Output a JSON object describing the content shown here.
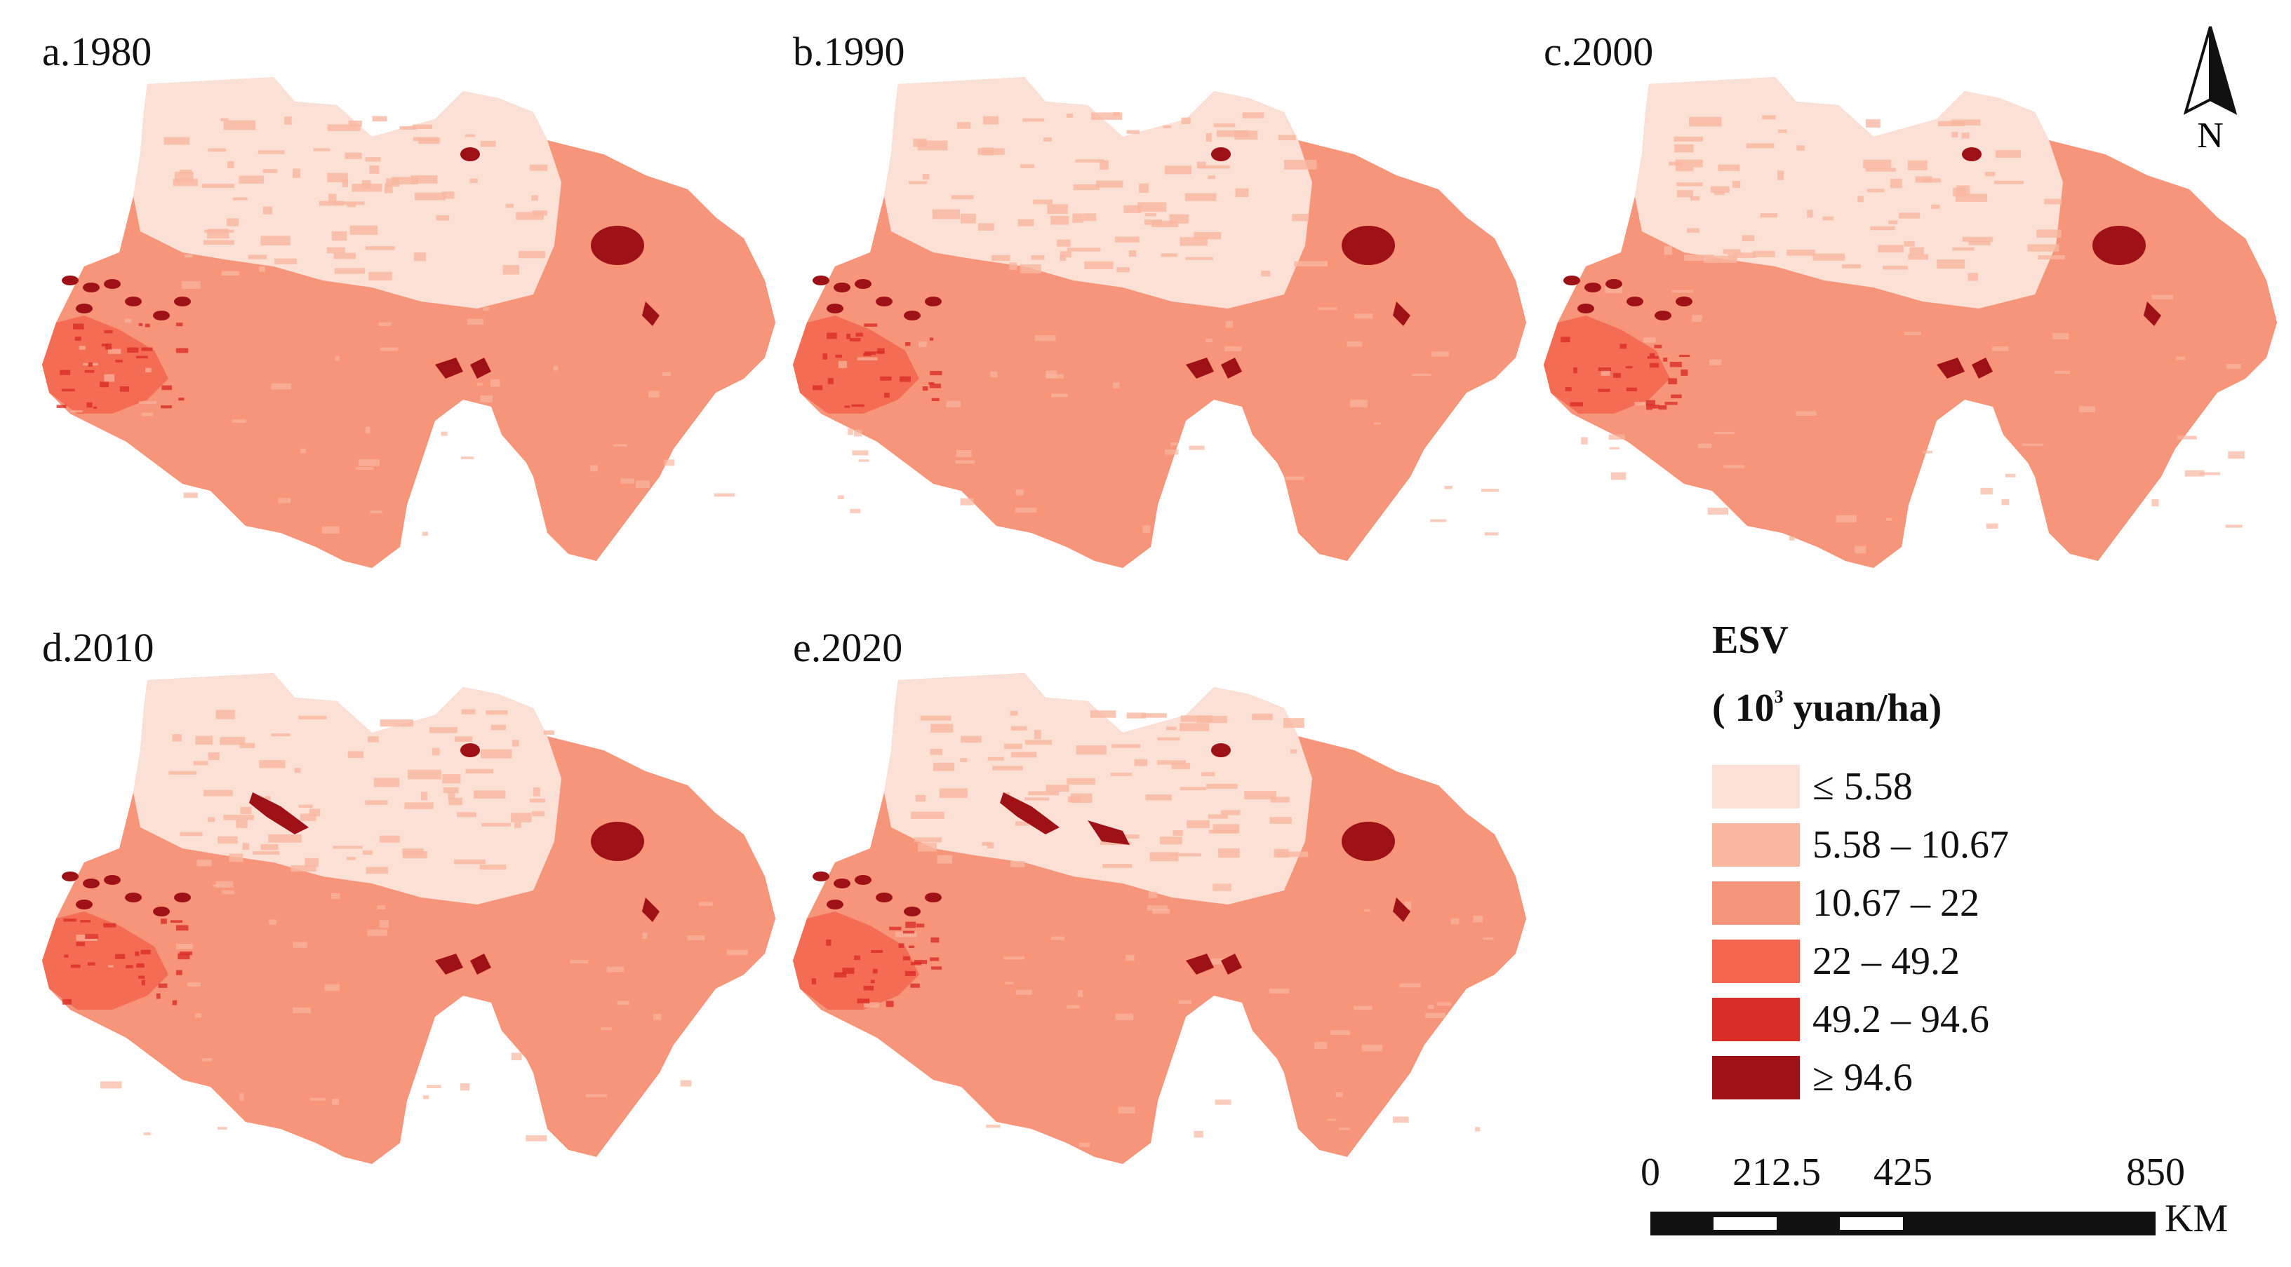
{
  "panels": [
    {
      "id": "a",
      "title": "a.1980"
    },
    {
      "id": "b",
      "title": "b.1990"
    },
    {
      "id": "c",
      "title": "c.2000"
    },
    {
      "id": "d",
      "title": "d.2010"
    },
    {
      "id": "e",
      "title": "e.2020"
    }
  ],
  "north_arrow": {
    "label": "N"
  },
  "legend": {
    "title": "ESV",
    "unit_prefix": "( 10",
    "unit_exponent": "3",
    "unit_suffix": " yuan/ha)",
    "classes": [
      {
        "label": "≤ 5.58",
        "color": "#fbe0d6"
      },
      {
        "label": "5.58 – 10.67",
        "color": "#f9b7a0"
      },
      {
        "label": "10.67 – 22",
        "color": "#f7957a"
      },
      {
        "label": "22 – 49.2",
        "color": "#f3654e"
      },
      {
        "label": "49.2 – 94.6",
        "color": "#d92d27"
      },
      {
        "label": "≥ 94.6",
        "color": "#9e1116"
      }
    ]
  },
  "scale_bar": {
    "ticks": [
      "0",
      "212.5",
      "425",
      "850"
    ],
    "unit": "KM"
  }
}
